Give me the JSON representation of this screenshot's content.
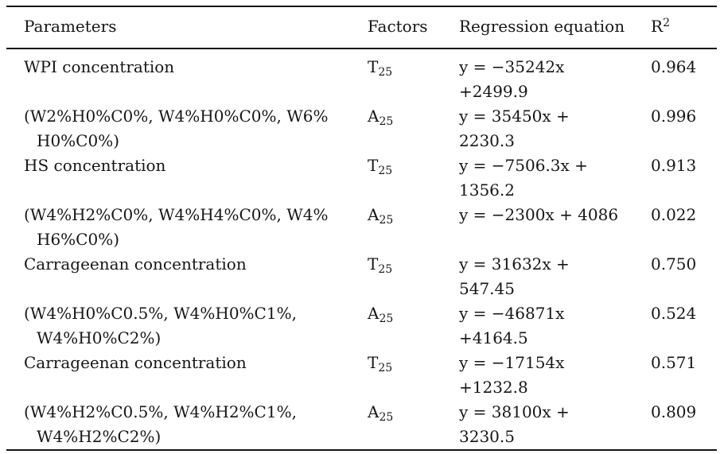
{
  "table": {
    "headers": {
      "parameters": "Parameters",
      "factors": "Factors",
      "regression": "Regression equation",
      "r2_base": "R",
      "r2_sup": "2"
    },
    "rows": [
      {
        "parameter_line1": "WPI concentration",
        "parameter_line2": "",
        "factor_base": "T",
        "factor_sub": "25",
        "equation_line1": "y = −35242x",
        "equation_line2": "+2499.9",
        "r2": "0.964"
      },
      {
        "parameter_line1": "(W2%H0%C0%, W4%H0%C0%, W6%",
        "parameter_line2": "H0%C0%)",
        "factor_base": "A",
        "factor_sub": "25",
        "equation_line1": "y = 35450x +",
        "equation_line2": "2230.3",
        "r2": "0.996"
      },
      {
        "parameter_line1": "HS concentration",
        "parameter_line2": "",
        "factor_base": "T",
        "factor_sub": "25",
        "equation_line1": "y = −7506.3x +",
        "equation_line2": "1356.2",
        "r2": "0.913"
      },
      {
        "parameter_line1": "(W4%H2%C0%, W4%H4%C0%, W4%",
        "parameter_line2": "H6%C0%)",
        "factor_base": "A",
        "factor_sub": "25",
        "equation_line1": "y = −2300x + 4086",
        "equation_line2": "",
        "r2": "0.022"
      },
      {
        "parameter_line1": "Carrageenan concentration",
        "parameter_line2": "",
        "factor_base": "T",
        "factor_sub": "25",
        "equation_line1": "y = 31632x +",
        "equation_line2": "547.45",
        "r2": "0.750"
      },
      {
        "parameter_line1": "(W4%H0%C0.5%, W4%H0%C1%,",
        "parameter_line2": "W4%H0%C2%)",
        "factor_base": "A",
        "factor_sub": "25",
        "equation_line1": "y = −46871x",
        "equation_line2": "+4164.5",
        "r2": "0.524"
      },
      {
        "parameter_line1": "Carrageenan concentration",
        "parameter_line2": "",
        "factor_base": "T",
        "factor_sub": "25",
        "equation_line1": "y = −17154x",
        "equation_line2": "+1232.8",
        "r2": "0.571"
      },
      {
        "parameter_line1": "(W4%H2%C0.5%, W4%H2%C1%,",
        "parameter_line2": "W4%H2%C2%)",
        "factor_base": "A",
        "factor_sub": "25",
        "equation_line1": "y = 38100x +",
        "equation_line2": "3230.5",
        "r2": "0.809"
      }
    ]
  }
}
